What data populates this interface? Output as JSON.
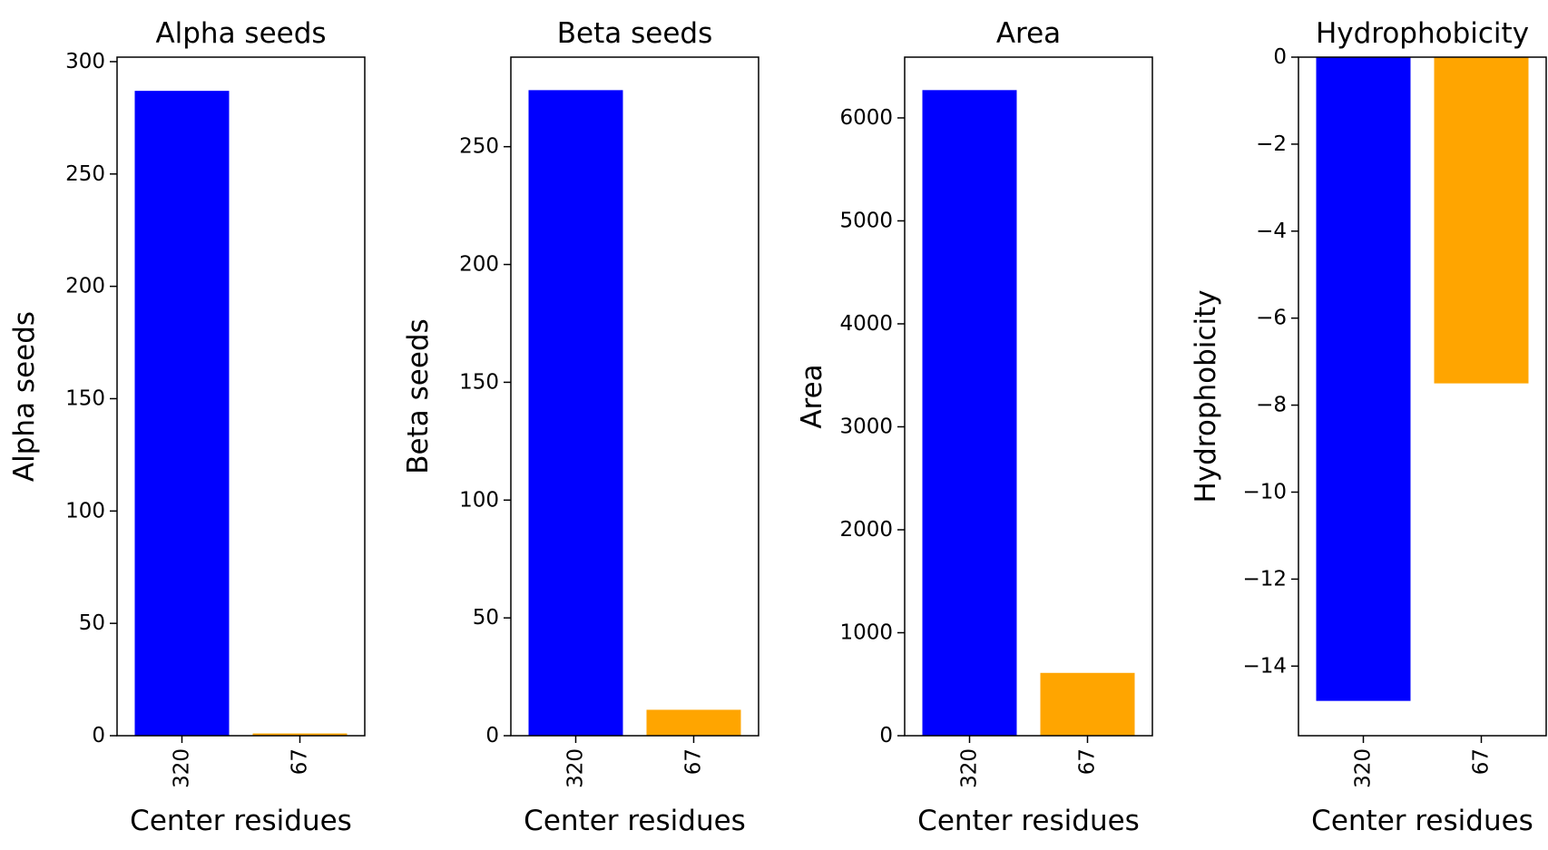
{
  "chart_data": [
    {
      "type": "bar",
      "title": "Alpha seeds",
      "xlabel": "Center residues",
      "ylabel": "Alpha seeds",
      "categories": [
        "320",
        "67"
      ],
      "values": [
        287,
        1
      ],
      "colors": [
        "#0000ff",
        "#ffa500"
      ],
      "ylim": [
        0,
        302
      ],
      "yticks": [
        0,
        50,
        100,
        150,
        200,
        250,
        300
      ],
      "grid": false
    },
    {
      "type": "bar",
      "title": "Beta seeds",
      "xlabel": "Center residues",
      "ylabel": "Beta seeds",
      "categories": [
        "320",
        "67"
      ],
      "values": [
        274,
        11
      ],
      "colors": [
        "#0000ff",
        "#ffa500"
      ],
      "ylim": [
        0,
        288
      ],
      "yticks": [
        0,
        50,
        100,
        150,
        200,
        250
      ],
      "grid": false
    },
    {
      "type": "bar",
      "title": "Area",
      "xlabel": "Center residues",
      "ylabel": "Area",
      "categories": [
        "320",
        "67"
      ],
      "values": [
        6270,
        610
      ],
      "colors": [
        "#0000ff",
        "#ffa500"
      ],
      "ylim": [
        0,
        6590
      ],
      "yticks": [
        0,
        1000,
        2000,
        3000,
        4000,
        5000,
        6000
      ],
      "grid": false
    },
    {
      "type": "bar",
      "title": "Hydrophobicity",
      "xlabel": "Center residues",
      "ylabel": "Hydrophobicity",
      "categories": [
        "320",
        "67"
      ],
      "values": [
        -14.8,
        -7.5
      ],
      "colors": [
        "#0000ff",
        "#ffa500"
      ],
      "ylim": [
        -15.6,
        0
      ],
      "yticks": [
        0,
        -2,
        -4,
        -6,
        -8,
        -10,
        -12,
        -14
      ],
      "ytick_labels": [
        "0",
        "−2",
        "−4",
        "−6",
        "−8",
        "−10",
        "−12",
        "−14"
      ],
      "grid": false
    }
  ]
}
